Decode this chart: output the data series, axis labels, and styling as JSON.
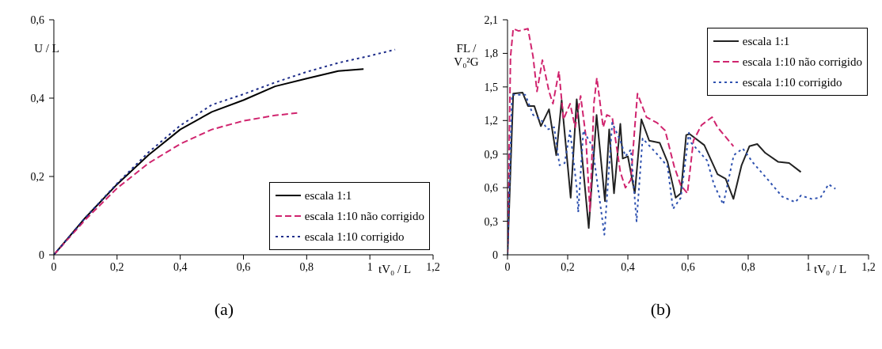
{
  "chart_data": [
    {
      "type": "line",
      "title": "(a)",
      "xlabel": "tV₀ / L",
      "ylabel": "U / L",
      "xlim": [
        0,
        1.2
      ],
      "ylim": [
        0,
        0.6
      ],
      "xticks": [
        {
          "value": 0,
          "label": "0"
        },
        {
          "value": 0.2,
          "label": "0,2"
        },
        {
          "value": 0.4,
          "label": "0,4"
        },
        {
          "value": 0.6,
          "label": "0,6"
        },
        {
          "value": 0.8,
          "label": "0,8"
        },
        1,
        {
          "value": 1.2,
          "label": "1,2"
        }
      ],
      "yticks": [
        {
          "value": 0,
          "label": "0"
        },
        {
          "value": 0.2,
          "label": "0,2"
        },
        {
          "value": 0.4,
          "label": "0,4"
        },
        {
          "value": 0.6,
          "label": "0,6"
        }
      ],
      "grid": false,
      "legend": "bottom right",
      "marker": "none",
      "series": [
        {
          "name": "escala 1:1",
          "color": "#000000",
          "line_style": "solid",
          "x": [
            0,
            0.1,
            0.2,
            0.3,
            0.4,
            0.5,
            0.6,
            0.7,
            0.8,
            0.9,
            0.98
          ],
          "values": [
            0,
            0.095,
            0.18,
            0.255,
            0.32,
            0.365,
            0.395,
            0.43,
            0.45,
            0.469,
            0.474
          ]
        },
        {
          "name": "escala 1:10 não corrigido",
          "color": "#d0246e",
          "line_style": "dashed",
          "x": [
            0,
            0.1,
            0.2,
            0.3,
            0.4,
            0.5,
            0.6,
            0.7,
            0.77
          ],
          "values": [
            0,
            0.09,
            0.17,
            0.234,
            0.283,
            0.32,
            0.342,
            0.356,
            0.362
          ]
        },
        {
          "name": "escala 1:10 corrigido",
          "color": "#1f2e8a",
          "line_style": "dotted",
          "x": [
            0,
            0.1,
            0.2,
            0.3,
            0.4,
            0.5,
            0.6,
            0.7,
            0.8,
            0.9,
            1,
            1.08
          ],
          "values": [
            0,
            0.095,
            0.182,
            0.262,
            0.33,
            0.383,
            0.41,
            0.44,
            0.467,
            0.49,
            0.508,
            0.524
          ]
        }
      ]
    },
    {
      "type": "line",
      "title": "(b)",
      "xlabel": "tV₀ / L",
      "ylabel": "FL / V₀²G",
      "xlim": [
        0,
        1.2
      ],
      "ylim": [
        0,
        2.1
      ],
      "xticks": [
        {
          "value": 0,
          "label": "0"
        },
        {
          "value": 0.2,
          "label": "0,2"
        },
        {
          "value": 0.4,
          "label": "0,4"
        },
        {
          "value": 0.6,
          "label": "0,6"
        },
        {
          "value": 0.8,
          "label": "0,8"
        },
        1,
        {
          "value": 1.2,
          "label": "1,2"
        }
      ],
      "yticks": [
        {
          "value": 0,
          "label": "0"
        },
        {
          "value": 0.3,
          "label": "0,3"
        },
        {
          "value": 0.6,
          "label": "0,6"
        },
        {
          "value": 0.9,
          "label": "0,9"
        },
        {
          "value": 1.2,
          "label": "1,2"
        },
        {
          "value": 1.5,
          "label": "1,5"
        },
        {
          "value": 1.8,
          "label": "1,8"
        },
        {
          "value": 2.1,
          "label": "2,1"
        }
      ],
      "grid": false,
      "legend": "top right",
      "marker": "none",
      "series": [
        {
          "name": "escala 1:1",
          "color": "#222222",
          "line_style": "solid",
          "x": [
            0,
            0.019,
            0.05,
            0.068,
            0.089,
            0.111,
            0.138,
            0.162,
            0.18,
            0.21,
            0.23,
            0.27,
            0.296,
            0.324,
            0.338,
            0.354,
            0.375,
            0.383,
            0.4,
            0.423,
            0.445,
            0.471,
            0.506,
            0.532,
            0.559,
            0.576,
            0.594,
            0.605,
            0.654,
            0.698,
            0.725,
            0.751,
            0.778,
            0.804,
            0.83,
            0.857,
            0.9,
            0.936,
            0.975
          ],
          "values": [
            0,
            1.44,
            1.45,
            1.33,
            1.33,
            1.15,
            1.3,
            0.89,
            1.38,
            0.51,
            1.39,
            0.24,
            1.25,
            0.48,
            1.12,
            0.55,
            1.17,
            0.86,
            0.88,
            0.55,
            1.21,
            1.02,
            1.0,
            0.83,
            0.51,
            0.55,
            1.07,
            1.08,
            0.98,
            0.72,
            0.68,
            0.5,
            0.8,
            0.97,
            0.99,
            0.91,
            0.83,
            0.82,
            0.74
          ]
        },
        {
          "name": "escala 1:10 não corrigido",
          "color": "#d0246e",
          "line_style": "dashed",
          "x": [
            0,
            0.01,
            0.019,
            0.037,
            0.068,
            0.085,
            0.098,
            0.116,
            0.138,
            0.151,
            0.171,
            0.186,
            0.208,
            0.225,
            0.243,
            0.26,
            0.274,
            0.287,
            0.297,
            0.318,
            0.33,
            0.348,
            0.375,
            0.392,
            0.41,
            0.423,
            0.432,
            0.462,
            0.497,
            0.524,
            0.554,
            0.576,
            0.598,
            0.618,
            0.645,
            0.68,
            0.698,
            0.751
          ],
          "values": [
            0,
            1.77,
            2.02,
            2.0,
            2.02,
            1.77,
            1.46,
            1.74,
            1.46,
            1.35,
            1.64,
            1.21,
            1.35,
            1.14,
            1.42,
            1.07,
            0.39,
            1.35,
            1.58,
            1.14,
            1.25,
            1.23,
            0.74,
            0.6,
            0.67,
            1.14,
            1.44,
            1.23,
            1.18,
            1.11,
            0.79,
            0.62,
            0.55,
            1.02,
            1.16,
            1.23,
            1.14,
            0.97
          ]
        },
        {
          "name": "escala 1:10 corrigido",
          "color": "#2f52b0",
          "line_style": "dotted",
          "x": [
            0,
            0.015,
            0.059,
            0.085,
            0.111,
            0.133,
            0.155,
            0.173,
            0.19,
            0.208,
            0.23,
            0.235,
            0.252,
            0.282,
            0.322,
            0.348,
            0.375,
            0.392,
            0.41,
            0.429,
            0.449,
            0.497,
            0.532,
            0.55,
            0.576,
            0.603,
            0.611,
            0.664,
            0.686,
            0.717,
            0.752,
            0.782,
            0.817,
            0.869,
            0.913,
            0.957,
            0.975,
            1.01,
            1.04,
            1.067,
            1.09
          ],
          "values": [
            0,
            1.43,
            1.43,
            1.25,
            1.21,
            1.12,
            1.14,
            0.8,
            0.82,
            1.11,
            0.6,
            0.38,
            1.11,
            0.97,
            0.18,
            1.18,
            1.02,
            0.88,
            0.94,
            0.3,
            1.04,
            0.9,
            0.79,
            0.41,
            0.51,
            1.09,
            1.0,
            0.84,
            0.63,
            0.45,
            0.89,
            0.95,
            0.82,
            0.66,
            0.52,
            0.47,
            0.53,
            0.5,
            0.51,
            0.63,
            0.59
          ]
        }
      ]
    }
  ]
}
